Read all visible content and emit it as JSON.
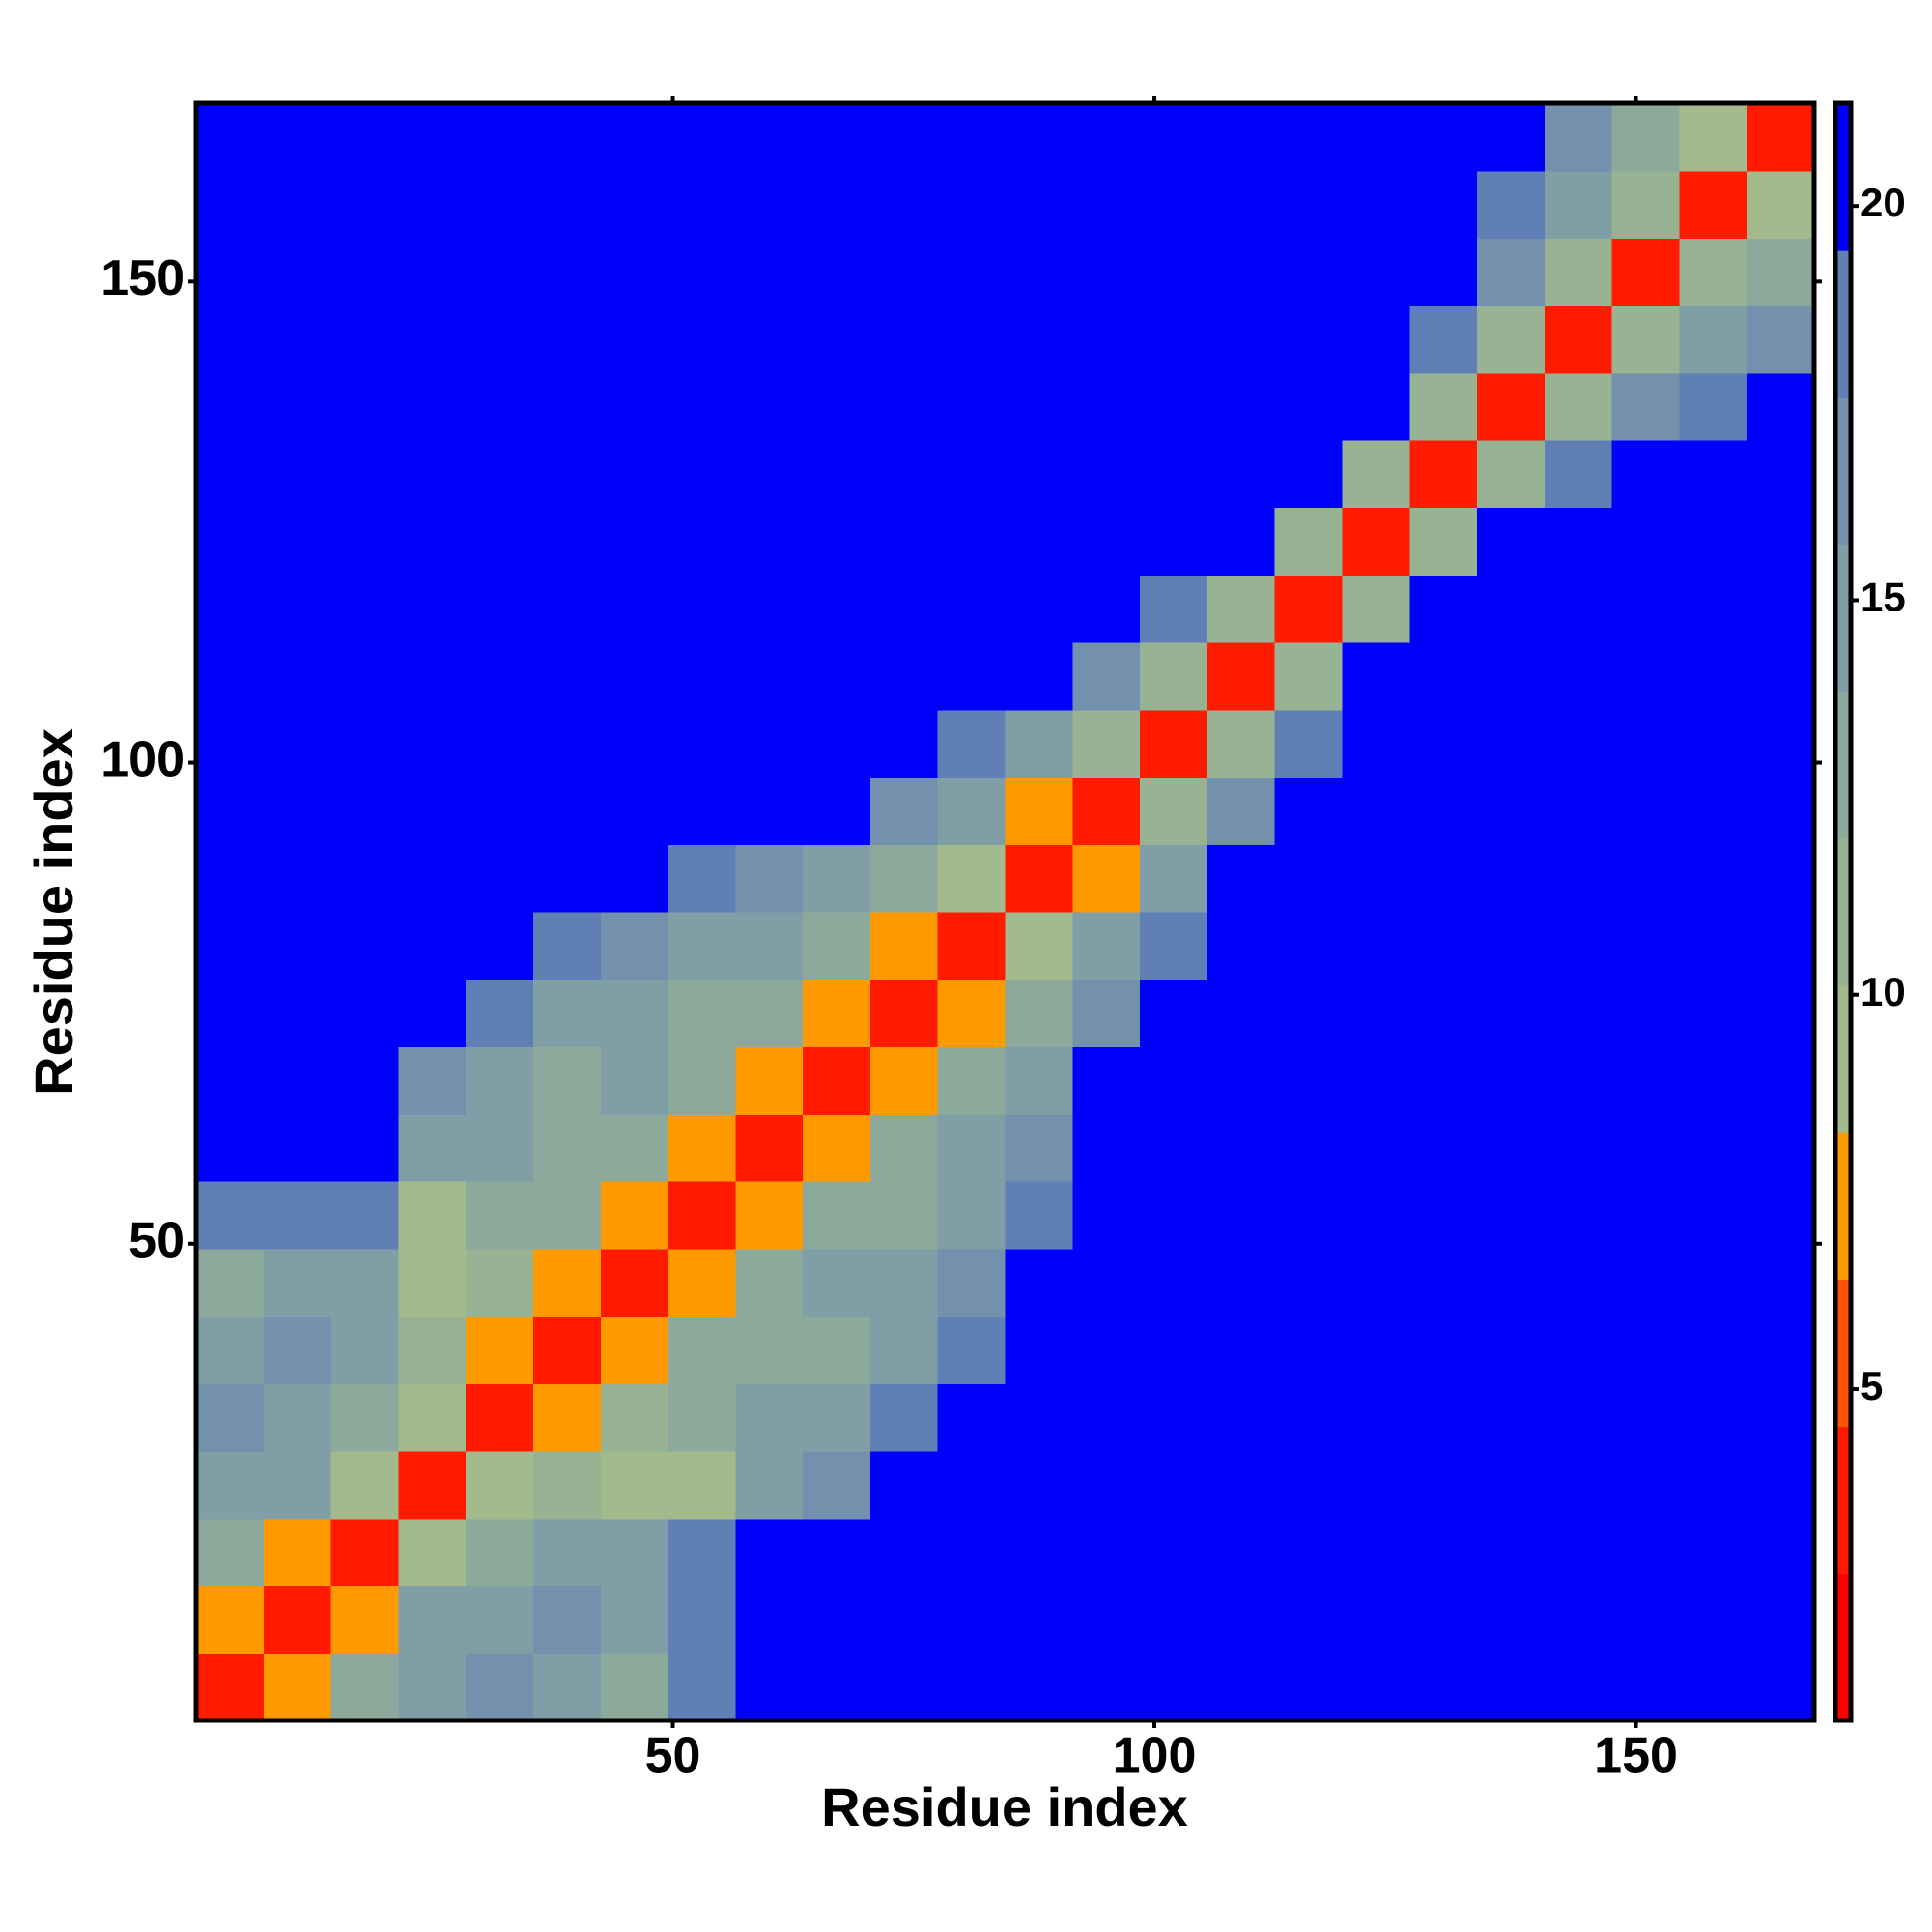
{
  "chart_data": {
    "type": "heatmap",
    "xlabel": "Residue index",
    "ylabel": "Residue index",
    "x": [
      4,
      11,
      18,
      25,
      32,
      39,
      46,
      53,
      60,
      67,
      74,
      81,
      88,
      95,
      102,
      109,
      116,
      123,
      130,
      137,
      144,
      151,
      158,
      165
    ],
    "y": [
      4,
      11,
      18,
      25,
      32,
      39,
      46,
      53,
      60,
      67,
      74,
      81,
      88,
      95,
      102,
      109,
      116,
      123,
      130,
      137,
      144,
      151,
      158,
      165
    ],
    "xlim": [
      0.5,
      168.5
    ],
    "ylim": [
      0.5,
      168.5
    ],
    "xticks": [
      50,
      100,
      150
    ],
    "yticks": [
      50,
      100,
      150
    ],
    "zlim": [
      0.8,
      21.3
    ],
    "zticks": [
      5,
      10,
      15,
      20
    ],
    "colors": [
      "#ff0000",
      "#ff1a00",
      "#ff5500",
      "#ff9900",
      "#a3bb8c",
      "#98b394",
      "#8ca99c",
      "#7f9ea6",
      "#7390ad",
      "#6080b5",
      "#0000ff"
    ],
    "values": [
      [
        3,
        8,
        13,
        15,
        16,
        14,
        13,
        19,
        21,
        21,
        21,
        21,
        21,
        21,
        21,
        21,
        21,
        21,
        21,
        21,
        21,
        21,
        21,
        21
      ],
      [
        8,
        3,
        8,
        14,
        15,
        17,
        15,
        19,
        21,
        21,
        21,
        21,
        21,
        21,
        21,
        21,
        21,
        21,
        21,
        21,
        21,
        21,
        21,
        21
      ],
      [
        13,
        8,
        3,
        9,
        12,
        14,
        15,
        18,
        21,
        21,
        21,
        21,
        21,
        21,
        21,
        21,
        21,
        21,
        21,
        21,
        21,
        21,
        21,
        21
      ],
      [
        15,
        14,
        9,
        3,
        9,
        11,
        9,
        10,
        15,
        16,
        21,
        21,
        21,
        21,
        21,
        21,
        21,
        21,
        21,
        21,
        21,
        21,
        21,
        21
      ],
      [
        16,
        15,
        12,
        9,
        3,
        8,
        11,
        13,
        14,
        14,
        19,
        21,
        21,
        21,
        21,
        21,
        21,
        21,
        21,
        21,
        21,
        21,
        21,
        21
      ],
      [
        14,
        17,
        14,
        11,
        8,
        3,
        8,
        12,
        13,
        13,
        15,
        19,
        21,
        21,
        21,
        21,
        21,
        21,
        21,
        21,
        21,
        21,
        21,
        21
      ],
      [
        13,
        15,
        15,
        9,
        11,
        8,
        3,
        8,
        12,
        14,
        14,
        16,
        21,
        21,
        21,
        21,
        21,
        21,
        21,
        21,
        21,
        21,
        21,
        21
      ],
      [
        19,
        19,
        18,
        10,
        13,
        12,
        8,
        3,
        8,
        12,
        13,
        15,
        19,
        21,
        21,
        21,
        21,
        21,
        21,
        21,
        21,
        21,
        21,
        21
      ],
      [
        21,
        21,
        21,
        15,
        14,
        13,
        12,
        8,
        3,
        8,
        13,
        14,
        17,
        21,
        21,
        21,
        21,
        21,
        21,
        21,
        21,
        21,
        21,
        21
      ],
      [
        21,
        21,
        21,
        16,
        14,
        13,
        14,
        12,
        8,
        3,
        8,
        12,
        14,
        21,
        21,
        21,
        21,
        21,
        21,
        21,
        21,
        21,
        21,
        21
      ],
      [
        21,
        21,
        21,
        21,
        19,
        15,
        14,
        13,
        13,
        8,
        3,
        8,
        13,
        17,
        21,
        21,
        21,
        21,
        21,
        21,
        21,
        21,
        21,
        21
      ],
      [
        21,
        21,
        21,
        21,
        21,
        19,
        16,
        15,
        14,
        12,
        8,
        3,
        9,
        14,
        19,
        21,
        21,
        21,
        21,
        21,
        21,
        21,
        21,
        21
      ],
      [
        21,
        21,
        21,
        21,
        21,
        21,
        21,
        19,
        17,
        14,
        13,
        9,
        3,
        8,
        15,
        21,
        21,
        21,
        21,
        21,
        21,
        21,
        21,
        21
      ],
      [
        21,
        21,
        21,
        21,
        21,
        21,
        21,
        21,
        21,
        21,
        17,
        14,
        8,
        3,
        11,
        17,
        21,
        21,
        21,
        21,
        21,
        21,
        21,
        21
      ],
      [
        21,
        21,
        21,
        21,
        21,
        21,
        21,
        21,
        21,
        21,
        21,
        19,
        15,
        11,
        3,
        11,
        19,
        21,
        21,
        21,
        21,
        21,
        21,
        21
      ],
      [
        21,
        21,
        21,
        21,
        21,
        21,
        21,
        21,
        21,
        21,
        21,
        21,
        21,
        17,
        11,
        3,
        11,
        20,
        21,
        21,
        21,
        21,
        21,
        21
      ],
      [
        21,
        21,
        21,
        21,
        21,
        21,
        21,
        21,
        21,
        21,
        21,
        21,
        21,
        21,
        19,
        11,
        3,
        11,
        20,
        21,
        21,
        21,
        21,
        21
      ],
      [
        21,
        21,
        21,
        21,
        21,
        21,
        21,
        21,
        21,
        21,
        21,
        21,
        21,
        21,
        21,
        20,
        11,
        3,
        11,
        20,
        21,
        21,
        21,
        21
      ],
      [
        21,
        21,
        21,
        21,
        21,
        21,
        21,
        21,
        21,
        21,
        21,
        21,
        21,
        21,
        21,
        21,
        20,
        11,
        3,
        11,
        19,
        21,
        21,
        21
      ],
      [
        21,
        21,
        21,
        21,
        21,
        21,
        21,
        21,
        21,
        21,
        21,
        21,
        21,
        21,
        21,
        21,
        21,
        20,
        11,
        3,
        11,
        17,
        19,
        21
      ],
      [
        21,
        21,
        21,
        21,
        21,
        21,
        21,
        21,
        21,
        21,
        21,
        21,
        21,
        21,
        21,
        21,
        21,
        21,
        19,
        11,
        3,
        11,
        15,
        17
      ],
      [
        21,
        21,
        21,
        21,
        21,
        21,
        21,
        21,
        21,
        21,
        21,
        21,
        21,
        21,
        21,
        21,
        21,
        21,
        21,
        17,
        11,
        3,
        11,
        13
      ],
      [
        21,
        21,
        21,
        21,
        21,
        21,
        21,
        21,
        21,
        21,
        21,
        21,
        21,
        21,
        21,
        21,
        21,
        21,
        21,
        19,
        15,
        11,
        3,
        10
      ],
      [
        21,
        21,
        21,
        21,
        21,
        21,
        21,
        21,
        21,
        21,
        21,
        21,
        21,
        21,
        21,
        21,
        21,
        21,
        21,
        21,
        17,
        13,
        10,
        3
      ]
    ]
  }
}
